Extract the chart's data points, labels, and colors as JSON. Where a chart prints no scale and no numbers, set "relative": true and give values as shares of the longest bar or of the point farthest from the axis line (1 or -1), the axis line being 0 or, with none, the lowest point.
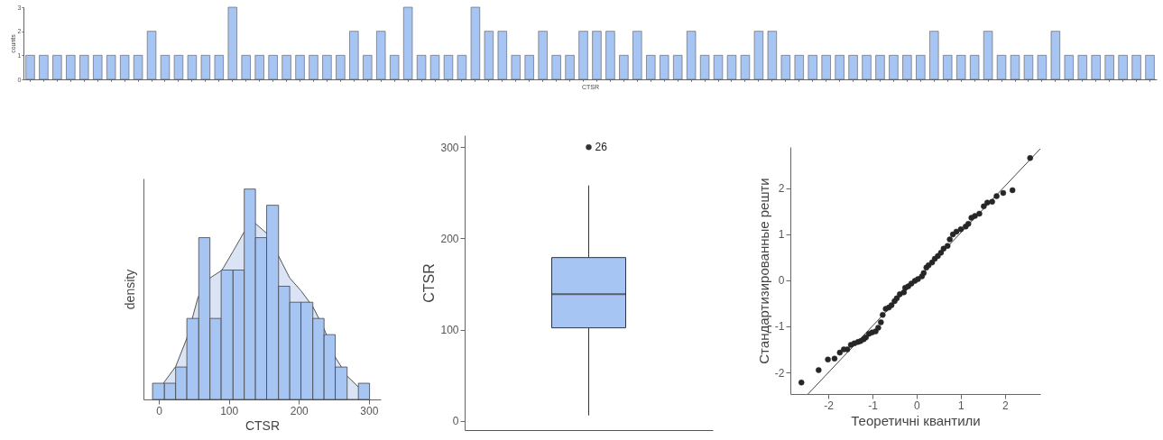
{
  "chart_data": [
    {
      "type": "bar",
      "xlabel": "CTSR",
      "ylabel": "counts",
      "categories": [
        null,
        null,
        null,
        null,
        null,
        null,
        null,
        null,
        null,
        null,
        null,
        null,
        null,
        null,
        null,
        null,
        null,
        null,
        null,
        null,
        null,
        null,
        null,
        null,
        null,
        null,
        null,
        null,
        null,
        null,
        null,
        null,
        null,
        null,
        null,
        null,
        null,
        null,
        null,
        null,
        null,
        null,
        null,
        null,
        null,
        null,
        null,
        null,
        null,
        null,
        null,
        null,
        null,
        null,
        null,
        null,
        null,
        null,
        null,
        null,
        null,
        null,
        null,
        null,
        null,
        null,
        null,
        null,
        null,
        null,
        null,
        null,
        null,
        null,
        null,
        null,
        null,
        null,
        null,
        null,
        null,
        null,
        null,
        null
      ],
      "values": [
        1,
        1,
        1,
        1,
        1,
        1,
        1,
        1,
        1,
        2,
        1,
        1,
        1,
        1,
        1,
        3,
        1,
        1,
        1,
        1,
        1,
        1,
        1,
        1,
        2,
        1,
        2,
        1,
        3,
        1,
        1,
        1,
        1,
        3,
        2,
        2,
        1,
        1,
        2,
        1,
        1,
        2,
        2,
        2,
        1,
        2,
        1,
        1,
        1,
        2,
        1,
        1,
        1,
        1,
        2,
        2,
        1,
        1,
        1,
        1,
        1,
        1,
        1,
        1,
        1,
        1,
        1,
        2,
        1,
        1,
        1,
        2,
        1,
        1,
        1,
        1,
        2,
        1,
        1,
        1,
        1,
        1,
        1,
        1
      ],
      "color": "#a7c5f2",
      "ylim": [
        0,
        3
      ],
      "yticks": [
        0,
        1,
        2,
        3
      ]
    },
    {
      "type": "histogram",
      "xlabel": "CTSR",
      "ylabel": "density",
      "relative": true,
      "xlim": [
        -22,
        317
      ],
      "xticks": [
        0,
        100,
        200,
        300
      ],
      "bins": [
        -9,
        8,
        24,
        40,
        57,
        73,
        89,
        106,
        122,
        138,
        154,
        171,
        187,
        203,
        220,
        236,
        252,
        269,
        285,
        301
      ],
      "series": [
        {
          "color": "#a7c5f2",
          "values": [
            0.077,
            0.077,
            0.154,
            0.385,
            0.769,
            0.385,
            0.615,
            0.615,
            1,
            0.769,
            0.923,
            0.538,
            0.462,
            0.462,
            0.385,
            0.308,
            0.154,
            0,
            0.077
          ]
        },
        {
          "type": "area",
          "color": "#dae4f5",
          "x": [
            6,
            24,
            40,
            56,
            73,
            90,
            106,
            122,
            137,
            155,
            171,
            187,
            203,
            220,
            236,
            252,
            269,
            285,
            300
          ],
          "values": [
            0.075,
            0.156,
            0.291,
            0.486,
            0.577,
            0.614,
            0.704,
            0.797,
            0.839,
            0.787,
            0.682,
            0.577,
            0.517,
            0.441,
            0.336,
            0.201,
            0.111,
            0.059,
            0.036
          ]
        }
      ]
    },
    {
      "type": "box",
      "ylabel": "CTSR",
      "categories": [
        null
      ],
      "color": "#a7c5f2",
      "ylim": [
        -10,
        313
      ],
      "yticks": [
        0,
        100,
        200,
        300
      ],
      "boxes": [
        {
          "low": 6,
          "q1": 102,
          "median": 139,
          "q3": 179,
          "high": 258,
          "outliers": [
            300
          ]
        }
      ],
      "annotations": [
        "26"
      ]
    },
    {
      "type": "scatter",
      "xlabel": "Теоретичні квантили",
      "ylabel": "Стандартизированные решти",
      "xlim": [
        -2.86,
        2.8
      ],
      "ylim": [
        -2.47,
        2.9
      ],
      "xticks": [
        -2,
        -1,
        0,
        1,
        2
      ],
      "yticks": [
        -2,
        -1,
        0,
        1,
        2
      ],
      "series": [
        {
          "color": "#262626",
          "marker": "circle",
          "x": [
            -2.61,
            -2.22,
            -2.01,
            -1.86,
            -1.74,
            -1.65,
            -1.57,
            -1.49,
            -1.41,
            -1.33,
            -1.27,
            -1.2,
            -1.15,
            -1.08,
            -1.01,
            -0.93,
            -0.87,
            -0.81,
            -0.77,
            -0.7,
            -0.63,
            -0.57,
            -0.5,
            -0.45,
            -0.38,
            -0.29,
            -0.26,
            -0.19,
            -0.12,
            -0.04,
            0.03,
            0.12,
            0.16,
            0.22,
            0.27,
            0.35,
            0.41,
            0.48,
            0.55,
            0.61,
            0.7,
            0.75,
            0.82,
            0.9,
            1,
            1.11,
            1.17,
            1.24,
            1.32,
            1.42,
            1.52,
            1.6,
            1.71,
            1.81,
            1.96,
            2.17,
            2.57
          ],
          "values": [
            -2.22,
            -1.95,
            -1.72,
            -1.7,
            -1.57,
            -1.5,
            -1.5,
            -1.4,
            -1.37,
            -1.34,
            -1.32,
            -1.28,
            -1.24,
            -1.16,
            -1.13,
            -1.11,
            -1.03,
            -0.91,
            -0.75,
            -0.62,
            -0.59,
            -0.54,
            -0.45,
            -0.39,
            -0.3,
            -0.26,
            -0.16,
            -0.13,
            -0.07,
            -0.01,
            0.03,
            0.09,
            0.16,
            0.28,
            0.33,
            0.39,
            0.47,
            0.53,
            0.6,
            0.69,
            0.75,
            0.89,
            1,
            1.06,
            1.11,
            1.17,
            1.23,
            1.36,
            1.4,
            1.45,
            1.61,
            1.69,
            1.71,
            1.83,
            1.9,
            1.96,
            2.66
          ]
        },
        {
          "type": "line",
          "color": "#444444",
          "x": [
            -2.46,
            2.8
          ],
          "values": [
            -2.47,
            2.86
          ]
        }
      ]
    }
  ]
}
